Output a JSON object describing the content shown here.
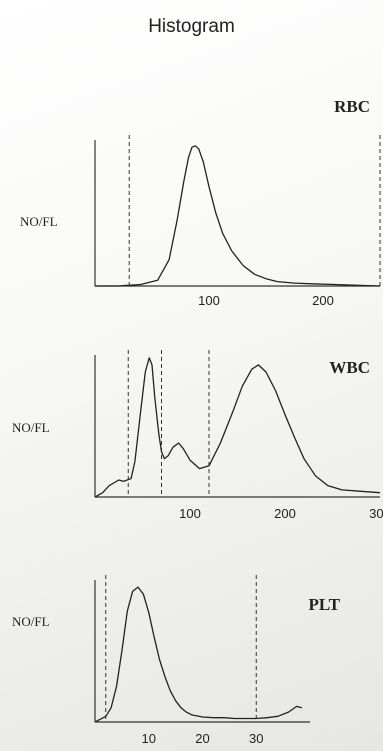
{
  "page": {
    "title": "Histogram"
  },
  "colors": {
    "curve": "#222222",
    "axis": "#333333",
    "text": "#222222"
  },
  "chart_data": [
    {
      "type": "line",
      "title": "RBC",
      "ylabel": "NO/FL",
      "xlabel": "",
      "xlim": [
        0,
        250
      ],
      "ylim": [
        0,
        100
      ],
      "xticks": [
        100,
        200
      ],
      "grid": false,
      "markers": [
        30,
        250
      ],
      "series": [
        {
          "x": [
            0,
            20,
            40,
            55,
            65,
            72,
            78,
            82,
            85,
            88,
            91,
            95,
            100,
            106,
            112,
            120,
            130,
            140,
            150,
            160,
            175,
            190,
            210,
            230,
            250
          ],
          "y": [
            0,
            0,
            1,
            4,
            18,
            45,
            72,
            88,
            95,
            96,
            94,
            85,
            68,
            50,
            36,
            24,
            14,
            8,
            5,
            3,
            2,
            1.5,
            1,
            0.5,
            0
          ]
        }
      ]
    },
    {
      "type": "line",
      "title": "WBC",
      "ylabel": "NO/FL",
      "xlabel": "",
      "xlim": [
        0,
        300
      ],
      "ylim": [
        0,
        100
      ],
      "xticks": [
        100,
        200,
        300
      ],
      "grid": false,
      "markers": [
        35,
        70,
        120
      ],
      "series": [
        {
          "x": [
            0,
            8,
            15,
            25,
            30,
            38,
            42,
            48,
            53,
            57,
            60,
            63,
            67,
            70,
            73,
            77,
            82,
            88,
            93,
            100,
            110,
            120,
            132,
            145,
            155,
            165,
            172,
            180,
            190,
            200,
            210,
            220,
            232,
            245,
            260,
            280,
            300
          ],
          "y": [
            0,
            3,
            8,
            12,
            11,
            13,
            25,
            60,
            88,
            98,
            93,
            70,
            45,
            32,
            27,
            29,
            35,
            38,
            34,
            26,
            20,
            22,
            38,
            60,
            78,
            90,
            93,
            88,
            75,
            58,
            42,
            27,
            15,
            8,
            5,
            4,
            3
          ]
        }
      ]
    },
    {
      "type": "line",
      "title": "PLT",
      "ylabel": "NO/FL",
      "xlabel": "",
      "xlim": [
        0,
        40
      ],
      "ylim": [
        0,
        100
      ],
      "xticks": [
        10,
        20,
        30
      ],
      "grid": false,
      "markers": [
        2,
        30
      ],
      "series": [
        {
          "x": [
            0,
            1,
            2,
            3,
            4,
            5,
            6,
            7,
            8,
            9,
            10,
            11,
            12,
            13,
            14,
            15,
            16,
            17,
            18,
            20,
            22,
            24,
            26,
            28,
            30,
            32,
            34,
            36,
            37.5,
            38.5
          ],
          "y": [
            0,
            2,
            4,
            10,
            25,
            50,
            78,
            92,
            95,
            90,
            77,
            60,
            44,
            32,
            22,
            15,
            10,
            7,
            5,
            3.5,
            3,
            3,
            2.5,
            2.5,
            2.5,
            3,
            4,
            7,
            11,
            10
          ]
        }
      ]
    }
  ]
}
